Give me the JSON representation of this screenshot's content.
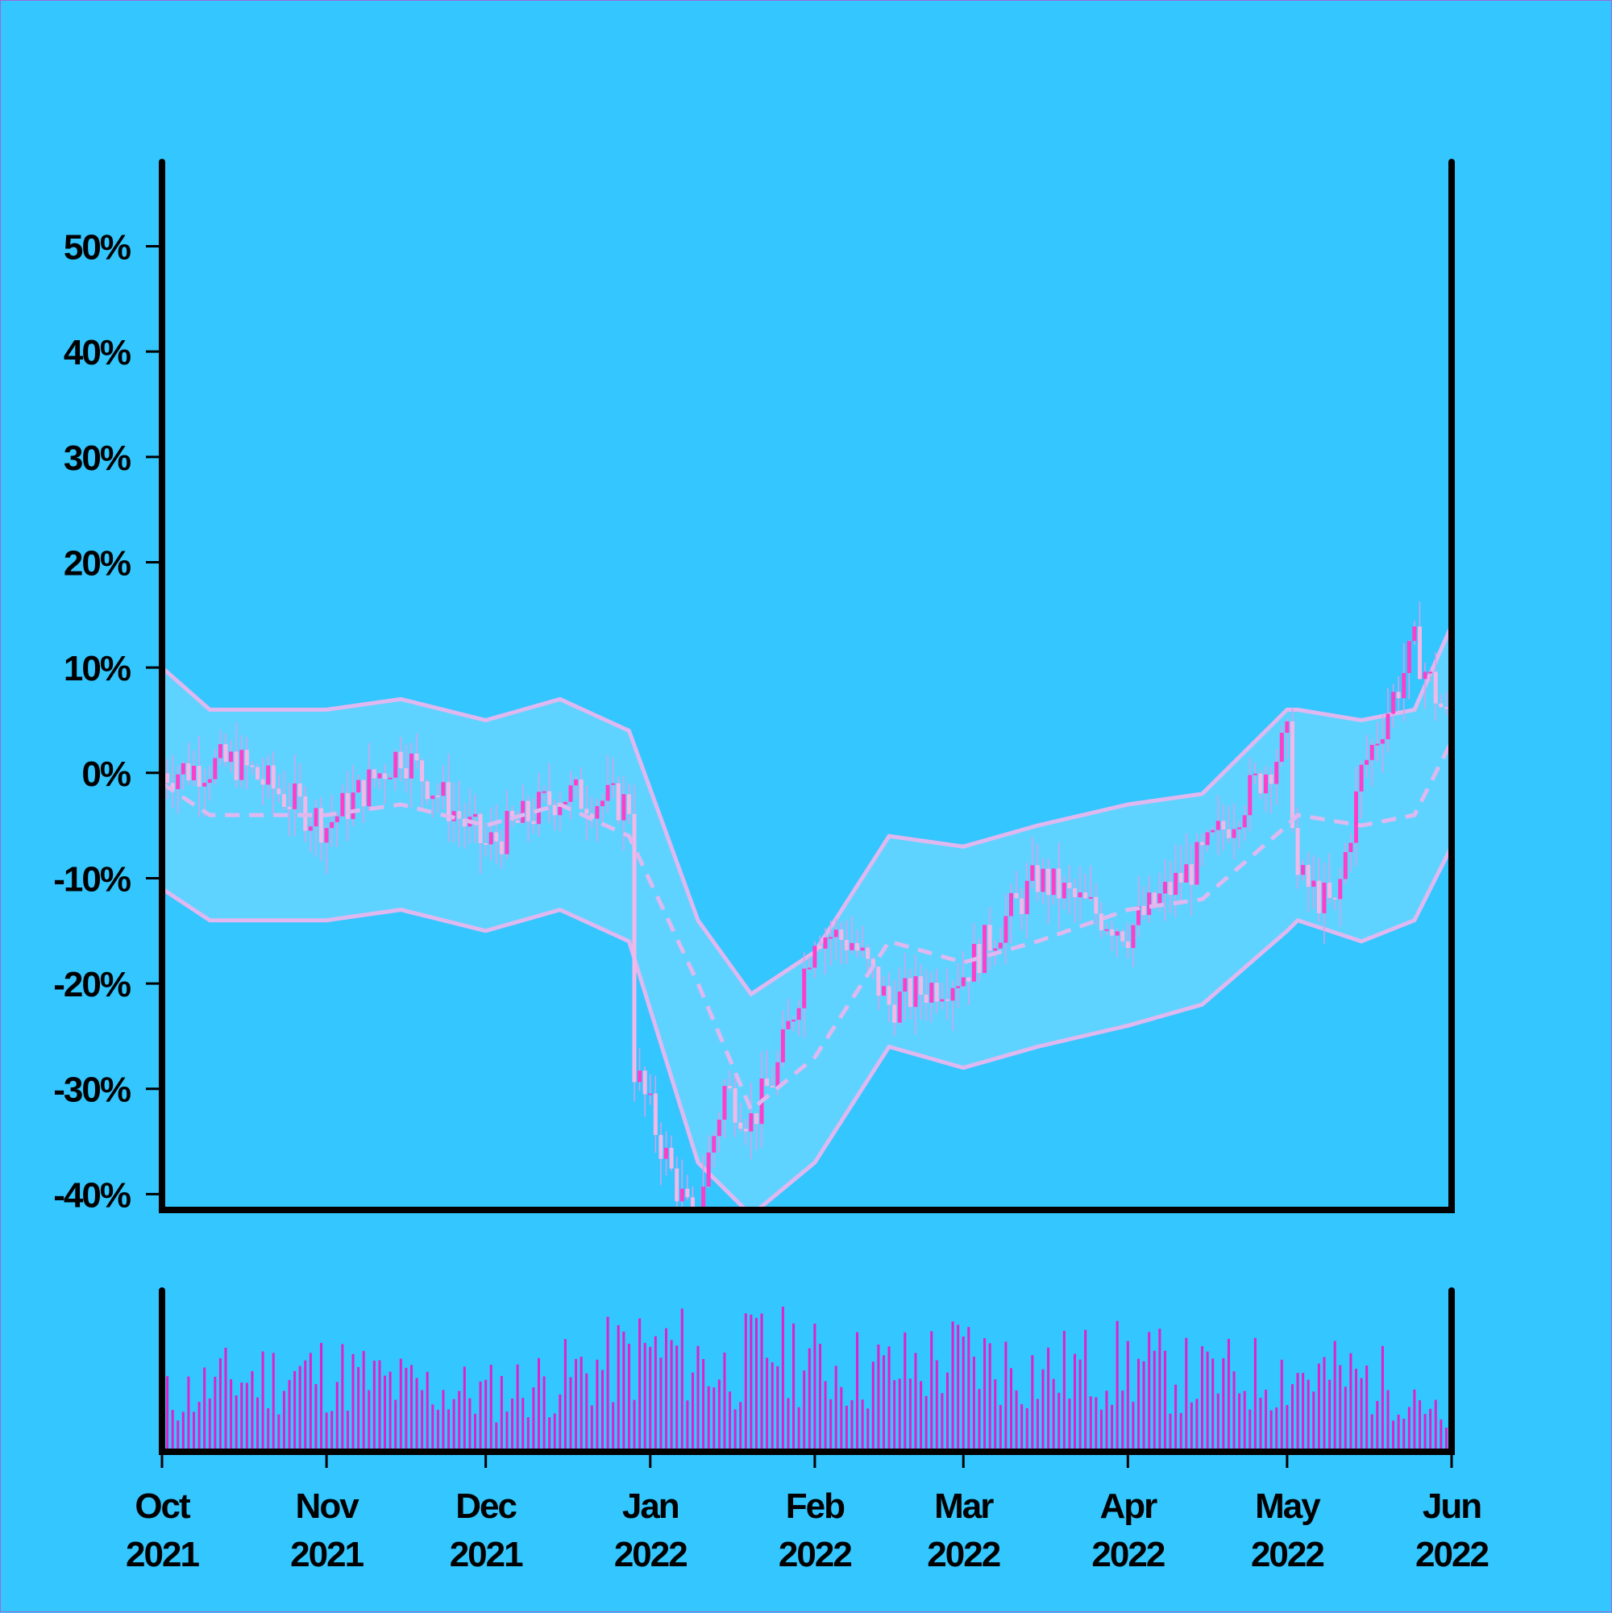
{
  "chart_data": [
    {
      "type": "candlestick",
      "title": "",
      "xlabel": "",
      "ylabel": "",
      "ylim": [
        -41.5,
        58
      ],
      "yticks": [
        "50%",
        "40%",
        "30%",
        "20%",
        "10%",
        "0%",
        "-10%",
        "-20%",
        "-30%",
        "-40%"
      ],
      "ytick_values": [
        50,
        40,
        30,
        20,
        10,
        0,
        -10,
        -20,
        -30,
        -40
      ],
      "grid": false,
      "legend": "none",
      "x_start": "2021-10-01",
      "x_end": "2022-06-01",
      "series": [
        {
          "kind": "price",
          "x": [
            "2021-10-01",
            "2021-10-15",
            "2021-11-01",
            "2021-11-15",
            "2021-12-01",
            "2021-12-15",
            "2021-12-28",
            "2021-12-29",
            "2022-01-05",
            "2022-01-09",
            "2022-01-15",
            "2022-01-20",
            "2022-01-25",
            "2022-02-01",
            "2022-02-08",
            "2022-02-15",
            "2022-03-01",
            "2022-03-15",
            "2022-04-01",
            "2022-04-15",
            "2022-05-01",
            "2022-05-03",
            "2022-05-10",
            "2022-05-15",
            "2022-05-25",
            "2022-06-01"
          ],
          "values": [
            0,
            1,
            -5,
            2,
            -7,
            -2,
            -3,
            -28,
            -38,
            -43,
            -30,
            -33,
            -28,
            -15,
            -16,
            -22,
            -19,
            -10,
            -15,
            -8,
            3,
            -10,
            -13,
            0,
            12,
            4
          ]
        },
        {
          "kind": "moving-average",
          "x": [
            "2021-10-01",
            "2021-10-10",
            "2021-11-01",
            "2021-11-15",
            "2021-12-01",
            "2021-12-15",
            "2021-12-28",
            "2022-01-10",
            "2022-01-20",
            "2022-02-01",
            "2022-02-15",
            "2022-03-01",
            "2022-03-15",
            "2022-04-01",
            "2022-04-15",
            "2022-05-01",
            "2022-05-03",
            "2022-05-15",
            "2022-05-25",
            "2022-06-01"
          ],
          "values": [
            -1,
            -4,
            -4,
            -3,
            -5,
            -3,
            -6,
            -20,
            -32,
            -27,
            -16,
            -18,
            -16,
            -13,
            -12,
            -5,
            -4,
            -5,
            -4,
            3
          ]
        },
        {
          "kind": "upper-band",
          "x": [
            "2021-10-01",
            "2021-10-10",
            "2021-11-01",
            "2021-11-15",
            "2021-12-01",
            "2021-12-15",
            "2021-12-28",
            "2022-01-10",
            "2022-01-20",
            "2022-02-01",
            "2022-02-15",
            "2022-03-01",
            "2022-03-15",
            "2022-04-01",
            "2022-04-15",
            "2022-05-01",
            "2022-05-03",
            "2022-05-15",
            "2022-05-25",
            "2022-06-01"
          ],
          "values": [
            10,
            6,
            6,
            7,
            5,
            7,
            4,
            -14,
            -21,
            -17,
            -6,
            -7,
            -5,
            -3,
            -2,
            6,
            6,
            5,
            6,
            14
          ]
        },
        {
          "kind": "lower-band",
          "x": [
            "2021-10-01",
            "2021-10-10",
            "2021-11-01",
            "2021-11-15",
            "2021-12-01",
            "2021-12-15",
            "2021-12-28",
            "2022-01-10",
            "2022-01-20",
            "2022-02-01",
            "2022-02-15",
            "2022-03-01",
            "2022-03-15",
            "2022-04-01",
            "2022-04-15",
            "2022-05-01",
            "2022-05-03",
            "2022-05-15",
            "2022-05-25",
            "2022-06-01"
          ],
          "values": [
            -11,
            -14,
            -14,
            -13,
            -15,
            -13,
            -16,
            -37,
            -42,
            -37,
            -26,
            -28,
            -26,
            -24,
            -22,
            -15,
            -14,
            -16,
            -14,
            -7
          ]
        }
      ]
    },
    {
      "type": "bar",
      "title": "",
      "xlabel": "",
      "ylabel": "",
      "xticks": [
        "Oct\n2021",
        "Nov\n2021",
        "Dec\n2021",
        "Jan\n2022",
        "Feb\n2022",
        "Mar\n2022",
        "Apr\n2022",
        "May\n2022",
        "Jun\n2022"
      ],
      "xtick_dates": [
        "2021-10-01",
        "2021-11-01",
        "2021-12-01",
        "2022-01-01",
        "2022-02-01",
        "2022-03-01",
        "2022-04-01",
        "2022-05-01",
        "2022-06-01"
      ],
      "xtick_labels": [
        {
          "month": "Oct",
          "year": "2021"
        },
        {
          "month": "Nov",
          "year": "2021"
        },
        {
          "month": "Dec",
          "year": "2021"
        },
        {
          "month": "Jan",
          "year": "2022"
        },
        {
          "month": "Feb",
          "year": "2022"
        },
        {
          "month": "Mar",
          "year": "2022"
        },
        {
          "month": "Apr",
          "year": "2022"
        },
        {
          "month": "May",
          "year": "2022"
        },
        {
          "month": "Jun",
          "year": "2022"
        }
      ],
      "series": [
        {
          "kind": "volume",
          "x": [
            "2021-10-01",
            "2021-10-15",
            "2021-11-01",
            "2021-11-15",
            "2021-12-01",
            "2021-12-15",
            "2021-12-28",
            "2022-01-05",
            "2022-01-15",
            "2022-01-25",
            "2022-02-01",
            "2022-02-15",
            "2022-03-01",
            "2022-03-15",
            "2022-04-01",
            "2022-04-15",
            "2022-05-01",
            "2022-05-15",
            "2022-05-25",
            "2022-06-01"
          ],
          "values": [
            0.35,
            0.5,
            0.55,
            0.45,
            0.4,
            0.5,
            0.65,
            0.7,
            0.55,
            0.75,
            0.6,
            0.55,
            0.65,
            0.55,
            0.6,
            0.5,
            0.55,
            0.5,
            0.45,
            0.1
          ]
        }
      ]
    }
  ],
  "colors": {
    "background": "#33c6ff",
    "band_fill": "#5fd3ff",
    "band_line": "#e0b8f0",
    "candle_up": "#ff3dc8",
    "candle_down": "#f4b8e8",
    "wick": "#d8a0e8",
    "volume_bar": "#e020c8",
    "axis": "#000000"
  }
}
